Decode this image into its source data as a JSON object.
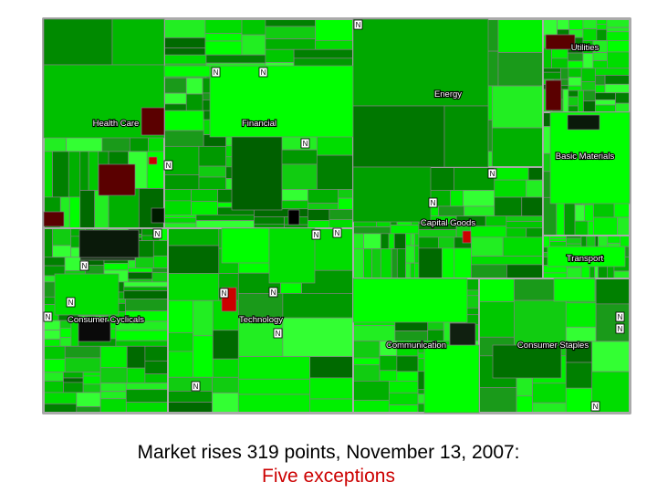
{
  "caption": {
    "line1": "Market rises 319 points, November 13, 2007:",
    "line2": "Five exceptions"
  },
  "colors": {
    "gain_bright": "#00ff00",
    "gain_mid": "#00c000",
    "gain_dark": "#006600",
    "loss": "#cc0000",
    "loss_dark": "#5a0000",
    "border": "#808080",
    "caption_highlight": "#cc0000"
  },
  "sectors": [
    {
      "id": "health-care",
      "label": "Health Care"
    },
    {
      "id": "financial",
      "label": "Financial"
    },
    {
      "id": "energy",
      "label": "Energy"
    },
    {
      "id": "utilities",
      "label": "Utilities"
    },
    {
      "id": "basic-materials",
      "label": "Basic Materials"
    },
    {
      "id": "capital-goods",
      "label": "Capital Goods"
    },
    {
      "id": "transport",
      "label": "Transport"
    },
    {
      "id": "consumer-cyclicals",
      "label": "Consumer Cyclicals"
    },
    {
      "id": "technology",
      "label": "Technology"
    },
    {
      "id": "communication",
      "label": "Communication"
    },
    {
      "id": "consumer-staples",
      "label": "Consumer Staples"
    }
  ],
  "news_marker": "N"
}
